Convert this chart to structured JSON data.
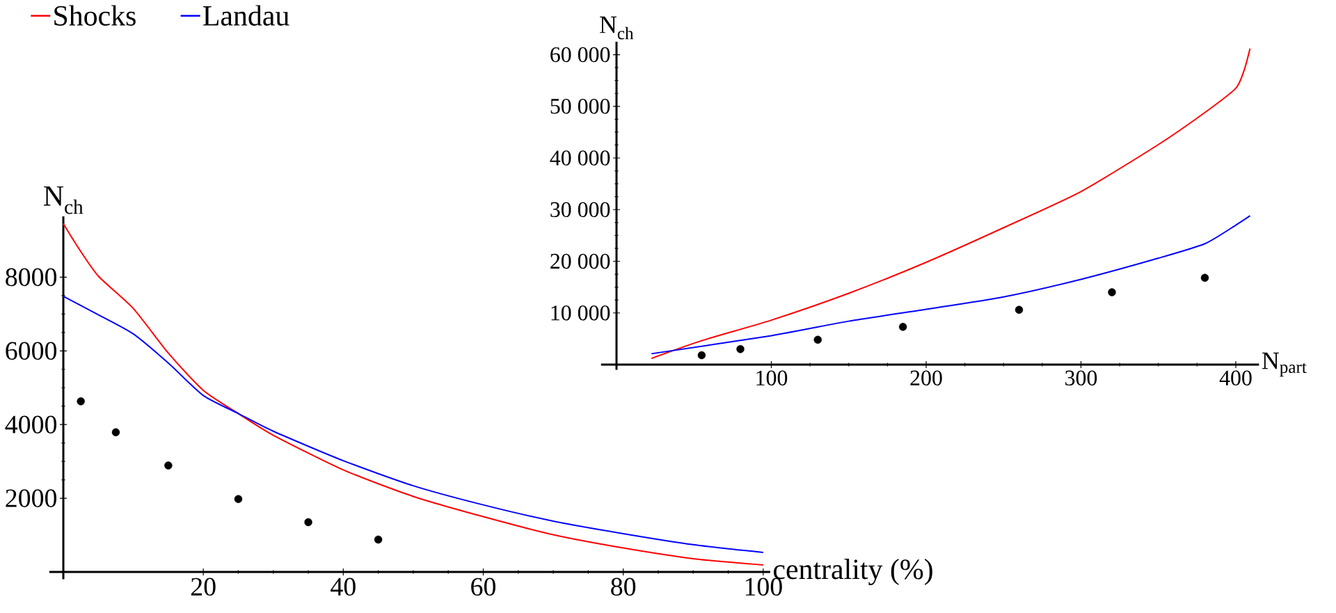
{
  "chart_data": [
    {
      "type": "line",
      "xlabel": "centrality (%)",
      "ylabel": "N$_{ch}$",
      "xlim": [
        -2,
        101
      ],
      "ylim": [
        -200,
        9650
      ],
      "xticks": [
        20,
        40,
        60,
        80,
        100
      ],
      "yticks": [
        2000,
        4000,
        6000,
        8000
      ],
      "legend": "top left",
      "series": [
        {
          "name": "Shocks",
          "color": "#ff0000",
          "x": [
            0,
            2,
            5,
            10,
            15,
            20,
            25,
            30,
            40,
            50,
            60,
            70,
            80,
            90,
            100
          ],
          "values": [
            9450,
            8840,
            8030,
            7150,
            5940,
            4930,
            4300,
            3710,
            2770,
            2050,
            1500,
            1010,
            650,
            360,
            190
          ]
        },
        {
          "name": "Landau",
          "color": "#0000ff",
          "x": [
            0,
            5,
            10,
            15,
            20,
            25,
            30,
            40,
            50,
            60,
            70,
            80,
            90,
            100
          ],
          "values": [
            7480,
            6980,
            6460,
            5670,
            4790,
            4300,
            3820,
            3020,
            2340,
            1820,
            1380,
            1040,
            740,
            530
          ]
        },
        {
          "type": "scatter",
          "color": "#000000",
          "x": [
            2.5,
            7.5,
            15,
            25,
            35,
            45
          ],
          "values": [
            4630,
            3790,
            2890,
            1980,
            1350,
            880
          ]
        }
      ]
    },
    {
      "type": "line",
      "xlabel": "N$_{part}$",
      "ylabel": "N$_{ch}$",
      "xlim": [
        -10,
        415
      ],
      "ylim": [
        -1000,
        62500
      ],
      "xticks": [
        100,
        200,
        300,
        400
      ],
      "yticks": [
        {
          "value": 10000,
          "label": "10 000"
        },
        {
          "value": 20000,
          "label": "20 000"
        },
        {
          "value": 30000,
          "label": "30 000"
        },
        {
          "value": 40000,
          "label": "40 000"
        },
        {
          "value": 50000,
          "label": "50 000"
        },
        {
          "value": 60000,
          "label": "60 000"
        }
      ],
      "series": [
        {
          "color": "#ff0000",
          "x": [
            22.6,
            54.7,
            100,
            150,
            200,
            250,
            300,
            350,
            380,
            400,
            405.5,
            409.2
          ],
          "values": [
            1200,
            4600,
            8600,
            13800,
            19800,
            26500,
            33500,
            42600,
            48800,
            53500,
            57100,
            61200
          ]
        },
        {
          "color": "#0000ff",
          "x": [
            22.6,
            100,
            150,
            200,
            250,
            300,
            350,
            380,
            400,
            409.2
          ],
          "values": [
            2100,
            5600,
            8400,
            10700,
            13100,
            16500,
            20600,
            23400,
            27000,
            28800
          ]
        },
        {
          "type": "scatter",
          "color": "#000000",
          "x": [
            55,
            80,
            130,
            185,
            260,
            320,
            380
          ],
          "values": [
            1800,
            3000,
            4800,
            7300,
            10600,
            14000,
            16800
          ]
        }
      ]
    }
  ]
}
